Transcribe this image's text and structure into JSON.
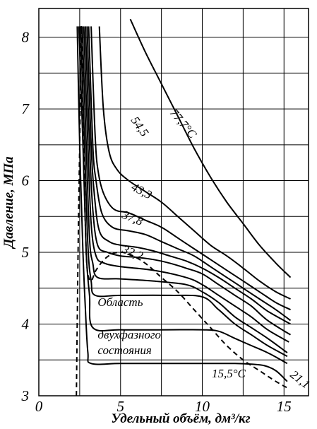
{
  "chart_data": {
    "type": "line",
    "xlabel": "Удельный объём, дм³/кг",
    "ylabel": "Давление, МПа",
    "xlim": [
      0,
      16.5
    ],
    "ylim": [
      3,
      8.4
    ],
    "xticks": [
      {
        "value": 0,
        "label": "0"
      },
      {
        "value": 5,
        "label": "5"
      },
      {
        "value": 10,
        "label": "10"
      },
      {
        "value": 15,
        "label": "15"
      }
    ],
    "yticks": [
      {
        "value": 3,
        "label": "3"
      },
      {
        "value": 4,
        "label": "4"
      },
      {
        "value": 5,
        "label": "5"
      },
      {
        "value": 6,
        "label": "6"
      },
      {
        "value": 7,
        "label": "7"
      },
      {
        "value": 8,
        "label": "8"
      }
    ],
    "grid": true,
    "grid_x_step": 2.5,
    "grid_y_step": 0.5,
    "series": [
      {
        "name": "15,5°C",
        "x": [
          2.35,
          2.5,
          2.7,
          2.85,
          3.0,
          3.2,
          5,
          8,
          10,
          12,
          13,
          13.8,
          14.5,
          15.2
        ],
        "y": [
          8.15,
          6.5,
          5.0,
          4.2,
          3.6,
          3.45,
          3.45,
          3.45,
          3.45,
          3.45,
          3.44,
          3.42,
          3.35,
          3.2
        ]
      },
      {
        "name": "",
        "x": [
          2.45,
          2.7,
          2.9,
          3.1,
          3.3,
          5,
          8,
          10,
          11,
          12,
          13,
          14,
          15.2
        ],
        "y": [
          8.15,
          6.5,
          5.0,
          4.4,
          3.95,
          3.92,
          3.92,
          3.92,
          3.9,
          3.8,
          3.7,
          3.6,
          3.45
        ]
      },
      {
        "name": "",
        "x": [
          2.55,
          2.8,
          3.0,
          3.2,
          3.45,
          5,
          8,
          10,
          11,
          12,
          13,
          14,
          15.2
        ],
        "y": [
          8.15,
          6.5,
          5.1,
          4.6,
          4.4,
          4.4,
          4.4,
          4.38,
          4.2,
          4.0,
          3.85,
          3.7,
          3.55
        ]
      },
      {
        "name": "21,1",
        "x": [
          2.65,
          2.9,
          3.1,
          3.3,
          3.6,
          5,
          7,
          9,
          10,
          11,
          12,
          13,
          14,
          15.2
        ],
        "y": [
          8.15,
          6.5,
          5.2,
          4.85,
          4.65,
          4.63,
          4.6,
          4.55,
          4.45,
          4.3,
          4.1,
          3.95,
          3.8,
          3.6
        ]
      },
      {
        "name": "",
        "x": [
          2.75,
          3.0,
          3.2,
          3.5,
          4.0,
          5,
          7,
          9,
          10,
          11,
          12,
          13,
          14,
          15.3
        ],
        "y": [
          8.15,
          6.5,
          5.4,
          4.95,
          4.85,
          4.8,
          4.75,
          4.65,
          4.55,
          4.4,
          4.25,
          4.1,
          3.92,
          3.75
        ]
      },
      {
        "name": "32,2",
        "x": [
          2.85,
          3.1,
          3.3,
          3.6,
          4.2,
          5,
          6,
          7,
          8,
          9,
          10,
          11,
          12,
          13,
          14,
          15.4
        ],
        "y": [
          8.15,
          6.5,
          5.6,
          5.1,
          5.0,
          4.95,
          4.93,
          4.9,
          4.85,
          4.78,
          4.7,
          4.55,
          4.4,
          4.25,
          4.05,
          3.85
        ]
      },
      {
        "name": "",
        "x": [
          2.95,
          3.2,
          3.4,
          3.7,
          4.3,
          5,
          6,
          7,
          8,
          9,
          10,
          11,
          12,
          13,
          14,
          15.4
        ],
        "y": [
          8.15,
          6.5,
          5.8,
          5.3,
          5.15,
          5.1,
          5.07,
          5.02,
          4.95,
          4.88,
          4.78,
          4.65,
          4.5,
          4.35,
          4.18,
          4.0
        ]
      },
      {
        "name": "37,8",
        "x": [
          3.05,
          3.3,
          3.5,
          3.85,
          4.5,
          5.5,
          6.5,
          7.5,
          8.5,
          9.5,
          10.5,
          11.5,
          12.5,
          13.5,
          14.5,
          15.4
        ],
        "y": [
          8.15,
          6.5,
          6.0,
          5.55,
          5.35,
          5.3,
          5.25,
          5.15,
          5.05,
          4.95,
          4.8,
          4.65,
          4.5,
          4.35,
          4.2,
          4.05
        ]
      },
      {
        "name": "43,3",
        "x": [
          3.2,
          3.45,
          3.65,
          4.0,
          4.6,
          5.5,
          6.5,
          7.5,
          8.5,
          9.5,
          10.5,
          11.5,
          12.5,
          13.5,
          14.5,
          15.4
        ],
        "y": [
          8.15,
          6.6,
          6.1,
          5.8,
          5.6,
          5.55,
          5.45,
          5.35,
          5.2,
          5.05,
          4.9,
          4.75,
          4.6,
          4.45,
          4.3,
          4.2
        ]
      },
      {
        "name": "54,5",
        "x": [
          3.7,
          3.95,
          4.3,
          4.8,
          5.5,
          6.5,
          7.5,
          8.5,
          9.5,
          10.5,
          11.5,
          12.5,
          13.5,
          14.5,
          15.4
        ],
        "y": [
          8.15,
          7.0,
          6.4,
          6.15,
          6.0,
          5.85,
          5.7,
          5.5,
          5.3,
          5.1,
          4.95,
          4.78,
          4.6,
          4.45,
          4.35
        ]
      },
      {
        "name": "77,7°C",
        "x": [
          5.6,
          6.5,
          7.5,
          8.5,
          9.5,
          10.5,
          11.5,
          12.5,
          13.5,
          14.5,
          15.4
        ],
        "y": [
          8.25,
          7.8,
          7.35,
          6.9,
          6.45,
          6.05,
          5.7,
          5.4,
          5.1,
          4.85,
          4.65
        ]
      }
    ],
    "saturation_dome": {
      "x": [
        2.3,
        2.4,
        2.5,
        2.6,
        2.7,
        2.8,
        2.9,
        3.0,
        3.2,
        3.5,
        4.0,
        4.5,
        5.0,
        5.5,
        6.5,
        7.5,
        8.5,
        9.5,
        10.5,
        11.5,
        12.5,
        13.5,
        14.5,
        15.3
      ],
      "y": [
        3.0,
        5.0,
        6.5,
        8.15,
        7.0,
        5.8,
        5.0,
        4.7,
        4.6,
        4.75,
        4.9,
        4.98,
        5.0,
        4.98,
        4.85,
        4.65,
        4.45,
        4.2,
        3.95,
        3.7,
        3.5,
        3.35,
        3.2,
        3.1
      ]
    },
    "annotations": [
      {
        "text": "Область",
        "x": 3.6,
        "y": 4.25
      },
      {
        "text": "двухфазного",
        "x": 3.6,
        "y": 3.8
      },
      {
        "text": "состояния",
        "x": 3.6,
        "y": 3.58
      }
    ]
  }
}
